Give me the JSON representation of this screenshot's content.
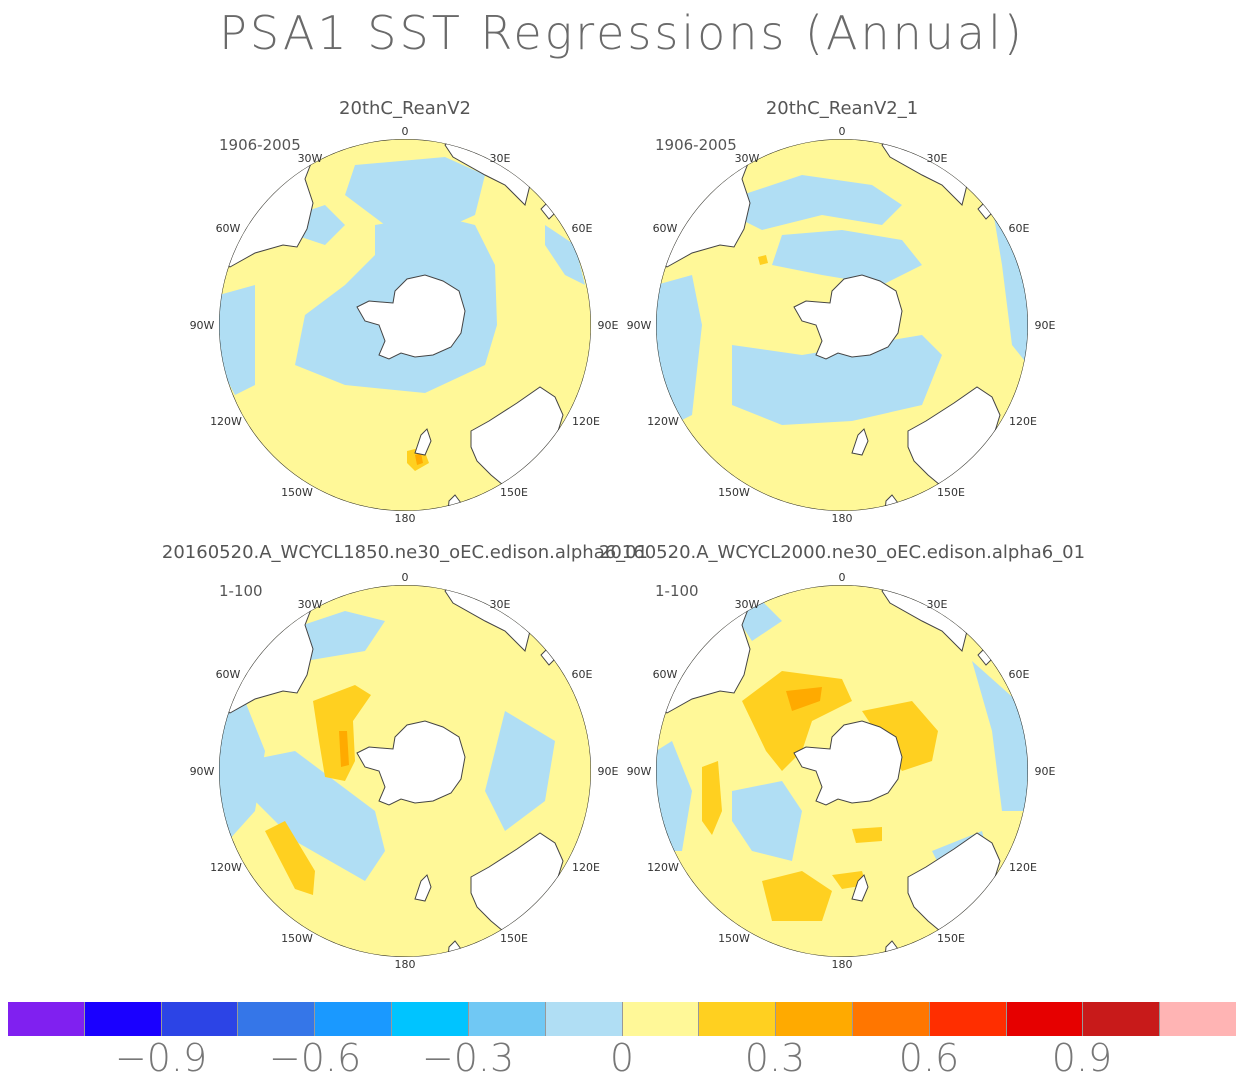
{
  "title": "PSA1 SST Regressions (Annual)",
  "panels": [
    {
      "name": "20thC_ReanV2",
      "period": "1906-2005"
    },
    {
      "name": "20thC_ReanV2_1",
      "period": "1906-2005"
    },
    {
      "name": "20160520.A_WCYCL1850.ne30_oEC.edison.alpha6_01",
      "period": "1-100"
    },
    {
      "name": "20160520.A_WCYCL2000.ne30_oEC.edison.alpha6_01",
      "period": "1-100"
    }
  ],
  "map_labels": {
    "n": "0",
    "s": "180",
    "lon30w": "30W",
    "lon30e": "30E",
    "lon60w": "60W",
    "lon60e": "60E",
    "lon90w": "90W",
    "lon90e": "90E",
    "lon120w": "120W",
    "lon120e": "120E",
    "lon150w": "150W",
    "lon150e": "150E"
  },
  "colorbar": {
    "colors": [
      "#8020f0",
      "#1a00ff",
      "#2c44e6",
      "#3576e8",
      "#1a99ff",
      "#00c4ff",
      "#70c8f4",
      "#b0def4",
      "#fff898",
      "#ffd020",
      "#ffaa00",
      "#ff7600",
      "#ff2e00",
      "#e60000",
      "#c81a1a",
      "#ffb4b4"
    ],
    "labels": [
      "−0.9",
      "−0.6",
      "−0.3",
      "0",
      "0.3",
      "0.6",
      "0.9"
    ]
  },
  "legend": {
    "ocean_positive": "#fff898",
    "ocean_negative": "#b0def4",
    "moderate_positive": "#ffd020",
    "strong_positive": "#ffaa00",
    "land": "#ffffff"
  }
}
